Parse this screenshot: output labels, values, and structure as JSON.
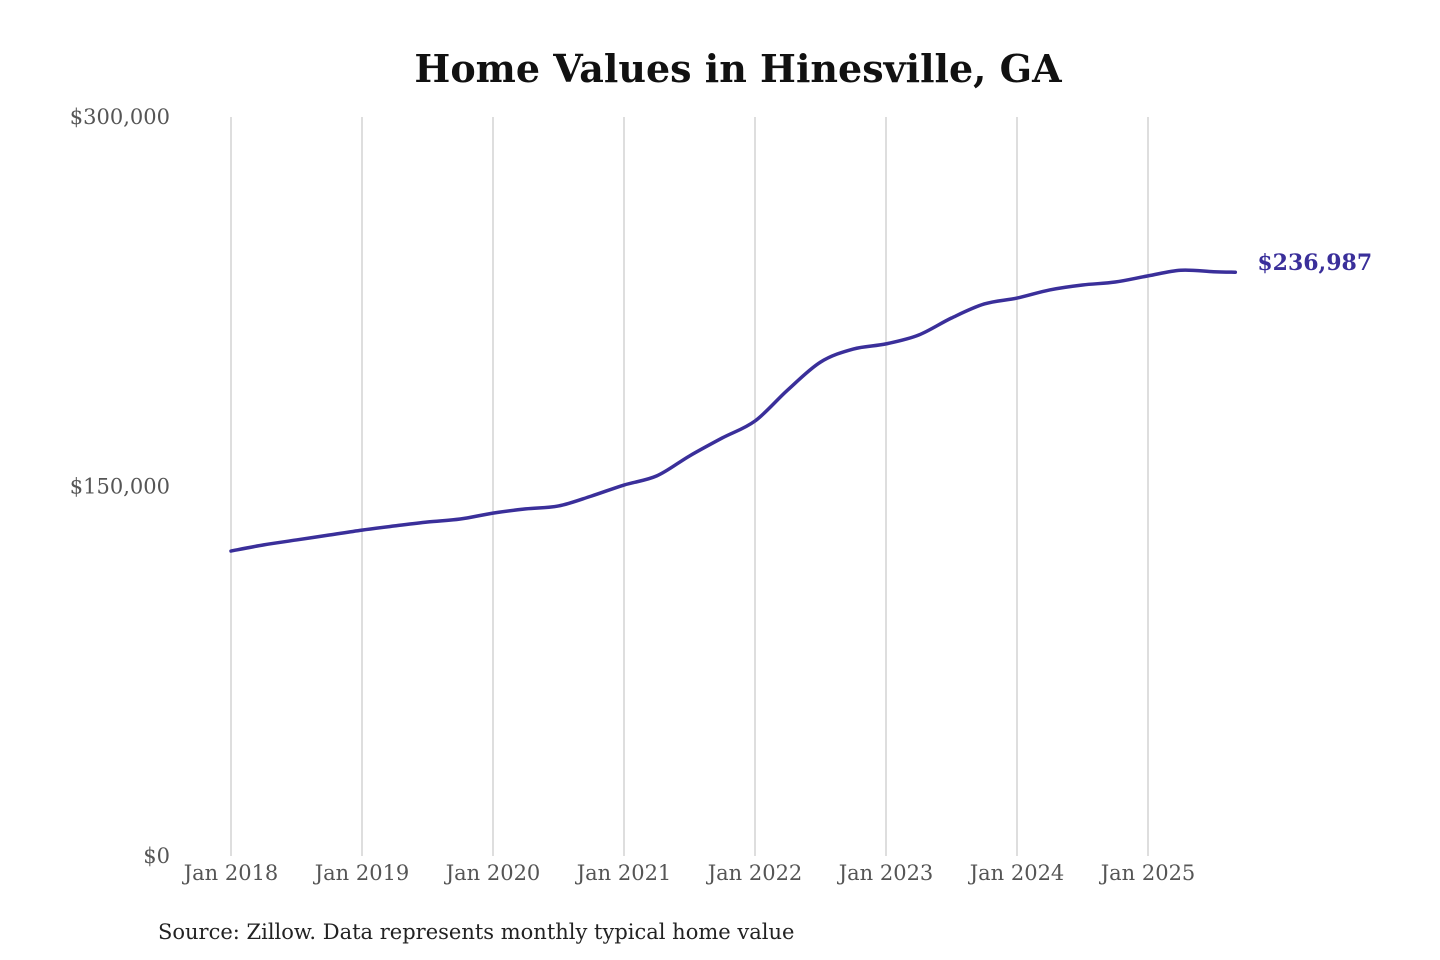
{
  "chart_data": {
    "type": "line",
    "title": "Home Values in Hinesville, GA",
    "xlabel": "",
    "ylabel": "",
    "ylim": [
      0,
      300000
    ],
    "yticks": [
      0,
      150000,
      300000
    ],
    "ytick_labels": [
      "$0",
      "$150,000",
      "$300,000"
    ],
    "xticks": [
      "2018-01",
      "2019-01",
      "2020-01",
      "2021-01",
      "2022-01",
      "2023-01",
      "2024-01",
      "2025-01"
    ],
    "xtick_labels": [
      "Jan 2018",
      "Jan 2019",
      "Jan 2020",
      "Jan 2021",
      "Jan 2022",
      "Jan 2023",
      "Jan 2024",
      "Jan 2025"
    ],
    "grid": "vertical",
    "line_color": "#3a2f9a",
    "end_label": "$236,987",
    "source": "Source: Zillow. Data represents monthly typical home value",
    "x": [
      "2018-01",
      "2018-04",
      "2018-07",
      "2018-10",
      "2019-01",
      "2019-04",
      "2019-07",
      "2019-10",
      "2020-01",
      "2020-04",
      "2020-07",
      "2020-10",
      "2021-01",
      "2021-04",
      "2021-07",
      "2021-10",
      "2022-01",
      "2022-04",
      "2022-07",
      "2022-10",
      "2023-01",
      "2023-04",
      "2023-07",
      "2023-10",
      "2024-01",
      "2024-04",
      "2024-07",
      "2024-10",
      "2025-01",
      "2025-04",
      "2025-07",
      "2025-09"
    ],
    "values": [
      123800,
      126300,
      128300,
      130300,
      132300,
      134000,
      135600,
      136800,
      139200,
      140900,
      142100,
      146100,
      150600,
      154300,
      162400,
      169700,
      176600,
      189200,
      200500,
      205800,
      207900,
      211500,
      218400,
      224100,
      226500,
      229800,
      231800,
      233000,
      235500,
      237800,
      237200,
      236987
    ]
  }
}
